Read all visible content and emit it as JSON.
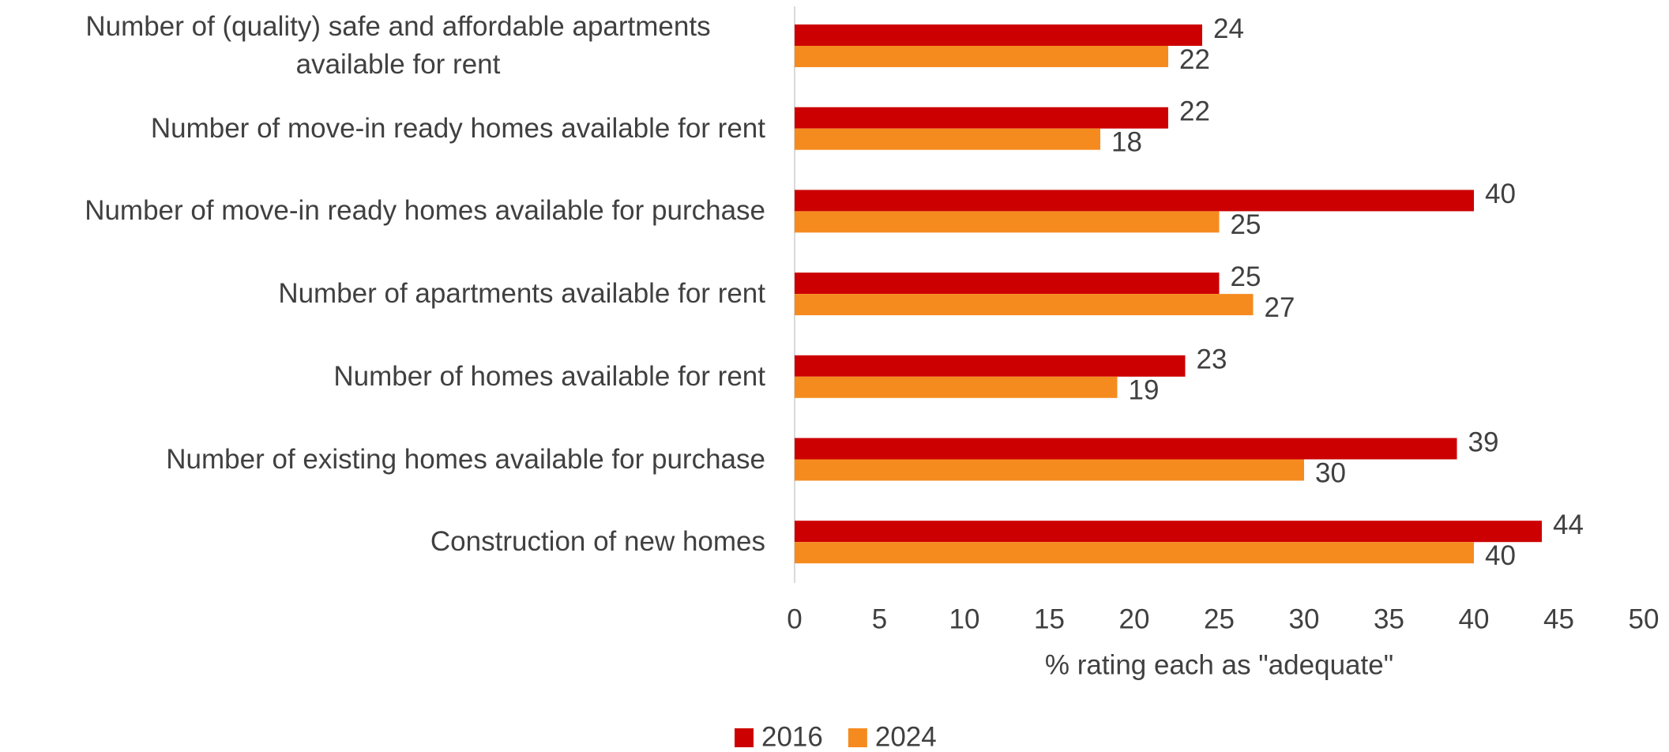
{
  "chart_data": {
    "type": "hbar",
    "categories": [
      "Number of (quality) safe and affordable apartments available for rent",
      "Number of move-in ready homes available for rent",
      "Number of move-in ready homes available for purchase",
      "Number of apartments available for rent",
      "Number of homes available for rent",
      "Number of existing homes available for purchase",
      "Construction of new homes"
    ],
    "series": [
      {
        "name": "2016",
        "color": "#cc0000",
        "values": [
          24,
          22,
          40,
          25,
          23,
          39,
          44
        ]
      },
      {
        "name": "2024",
        "color": "#f58b1f",
        "values": [
          22,
          18,
          25,
          27,
          19,
          30,
          40
        ]
      }
    ],
    "xlabel": "% rating each as \"adequate\"",
    "xlim": [
      0,
      50
    ],
    "xticks": [
      0,
      5,
      10,
      15,
      20,
      25,
      30,
      35,
      40,
      45,
      50
    ],
    "grid": false,
    "legend": "bottom"
  }
}
